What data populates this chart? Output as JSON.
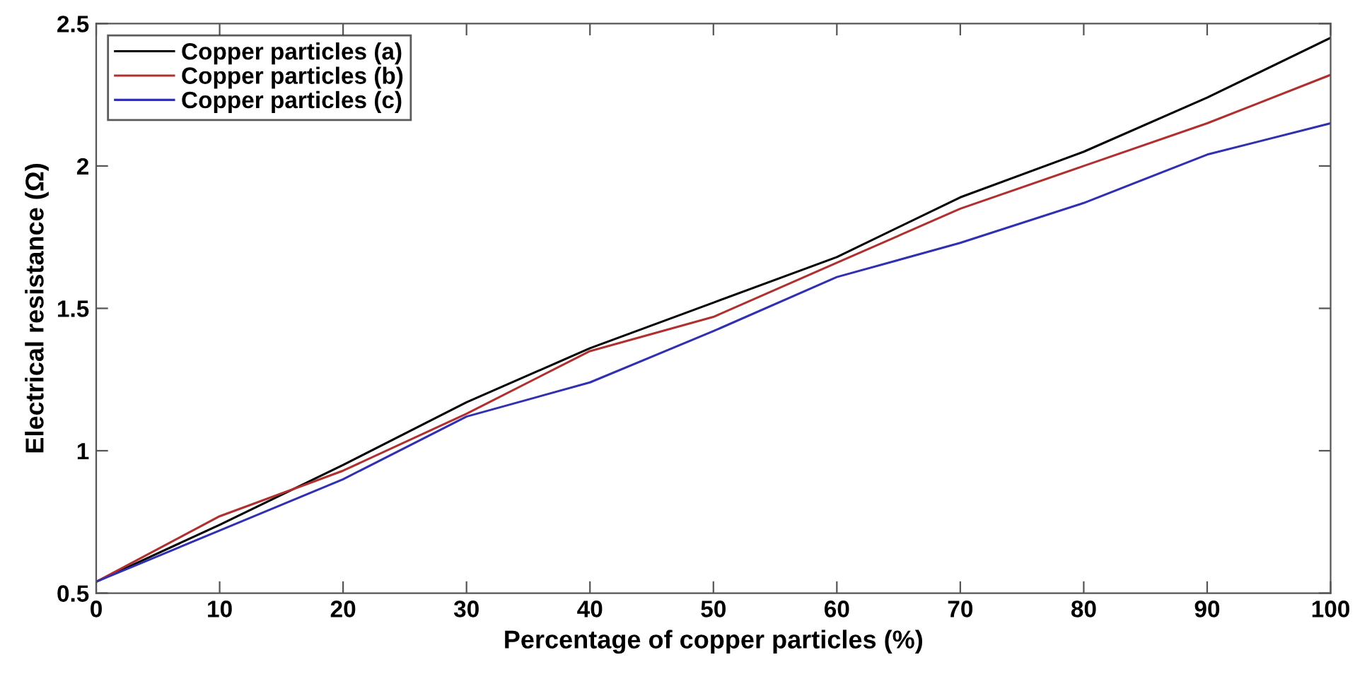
{
  "chart_data": {
    "type": "line",
    "xlabel": "Percentage of copper particles (%)",
    "ylabel": "Electrical resistance (Ω)",
    "x": [
      0,
      10,
      20,
      30,
      40,
      50,
      60,
      70,
      80,
      90,
      100
    ],
    "series": [
      {
        "name": "Copper particles (a)",
        "color": "#000000",
        "values": [
          0.54,
          0.74,
          0.95,
          1.17,
          1.36,
          1.52,
          1.68,
          1.89,
          2.05,
          2.24,
          2.45
        ]
      },
      {
        "name": "Copper particles (b)",
        "color": "#b03030",
        "values": [
          0.54,
          0.77,
          0.93,
          1.13,
          1.35,
          1.47,
          1.66,
          1.85,
          2.0,
          2.15,
          2.32
        ]
      },
      {
        "name": "Copper particles (c)",
        "color": "#3030b0",
        "values": [
          0.54,
          0.72,
          0.9,
          1.12,
          1.24,
          1.42,
          1.61,
          1.73,
          1.87,
          2.04,
          2.15
        ]
      }
    ],
    "xlim": [
      0,
      100
    ],
    "xticks": [
      0,
      10,
      20,
      30,
      40,
      50,
      60,
      70,
      80,
      90,
      100
    ],
    "ylim": [
      0.5,
      2.5
    ],
    "yticks": [
      0.5,
      1,
      1.5,
      2,
      2.5
    ],
    "grid": false,
    "legend": "top left",
    "marker": "none",
    "line_style": "solid"
  }
}
